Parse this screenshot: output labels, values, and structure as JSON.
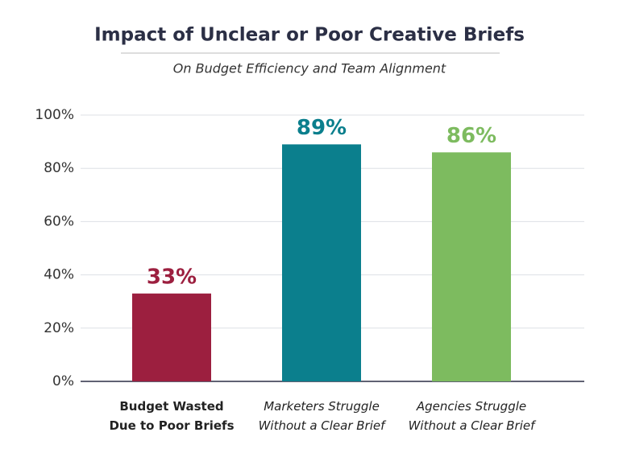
{
  "chart_data": {
    "type": "bar",
    "title": "Impact of Unclear or Poor Creative Briefs",
    "subtitle": "On Budget Efficiency and Team Alignment",
    "categories": [
      "Budget Wasted\nDue to Poor Briefs",
      "Marketers Struggle\nWithout a Clear Brief",
      "Agencies Struggle\nWithout a Clear Brief"
    ],
    "values": [
      33,
      89,
      86
    ],
    "value_labels": [
      "33%",
      "89%",
      "86%"
    ],
    "colors": [
      "#9c1f3f",
      "#0b7f8d",
      "#7dbb5f"
    ],
    "ylim": [
      0,
      100
    ],
    "yticks": [
      {
        "value": 0,
        "label": "0%"
      },
      {
        "value": 20,
        "label": "20%"
      },
      {
        "value": 40,
        "label": "40%"
      },
      {
        "value": 60,
        "label": "60%"
      },
      {
        "value": 80,
        "label": "80%"
      },
      {
        "value": 100,
        "label": "100%"
      }
    ],
    "grid": true
  }
}
